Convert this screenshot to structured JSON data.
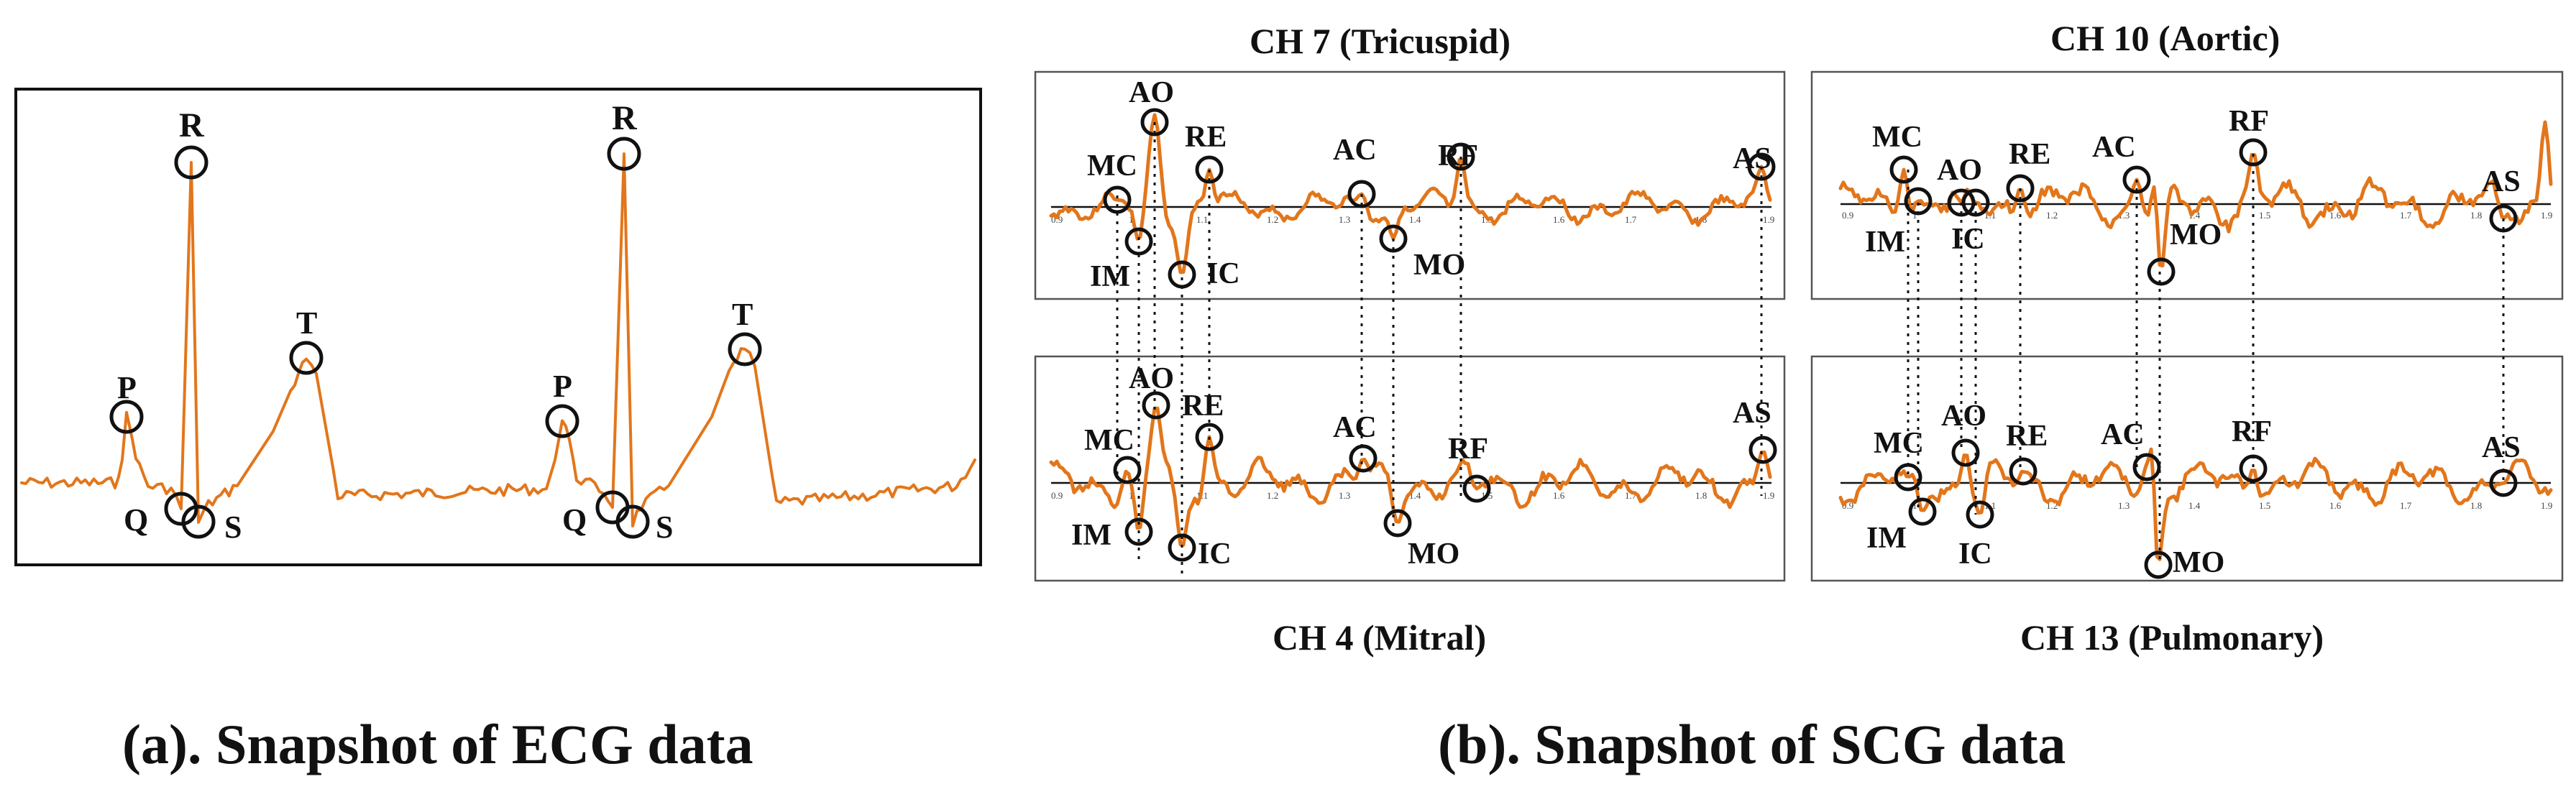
{
  "ecg": {
    "caption": "(a). Snapshot of ECG data",
    "labels": {
      "P": "P",
      "Q": "Q",
      "R": "R",
      "S": "S",
      "T": "T"
    }
  },
  "scg": {
    "caption": "(b). Snapshot of SCG data",
    "ch7": "CH 7 (Tricuspid)",
    "ch10": "CH 10 (Aortic)",
    "ch4": "CH 4 (Mitral)",
    "ch13": "CH 13 (Pulmonary)"
  },
  "markers": {
    "AO": "AO",
    "MC": "MC",
    "IM": "IM",
    "IC": "IC",
    "RE": "RE",
    "AC": "AC",
    "MO": "MO",
    "RF": "RF",
    "AS": "AS"
  },
  "ticks": {
    "left": [
      "0.9",
      "1",
      "1.1",
      "1.2",
      "1.3",
      "1.4",
      "1.5",
      "1.6",
      "1.7",
      "1.8",
      "1.9"
    ],
    "right": [
      "0.9",
      "1",
      "1.1",
      "1.2",
      "1.3",
      "1.4",
      "1.5",
      "1.6",
      "1.7",
      "1.8",
      "1.9"
    ]
  },
  "colors": {
    "trace": "#e2761b",
    "ink": "#111111"
  }
}
